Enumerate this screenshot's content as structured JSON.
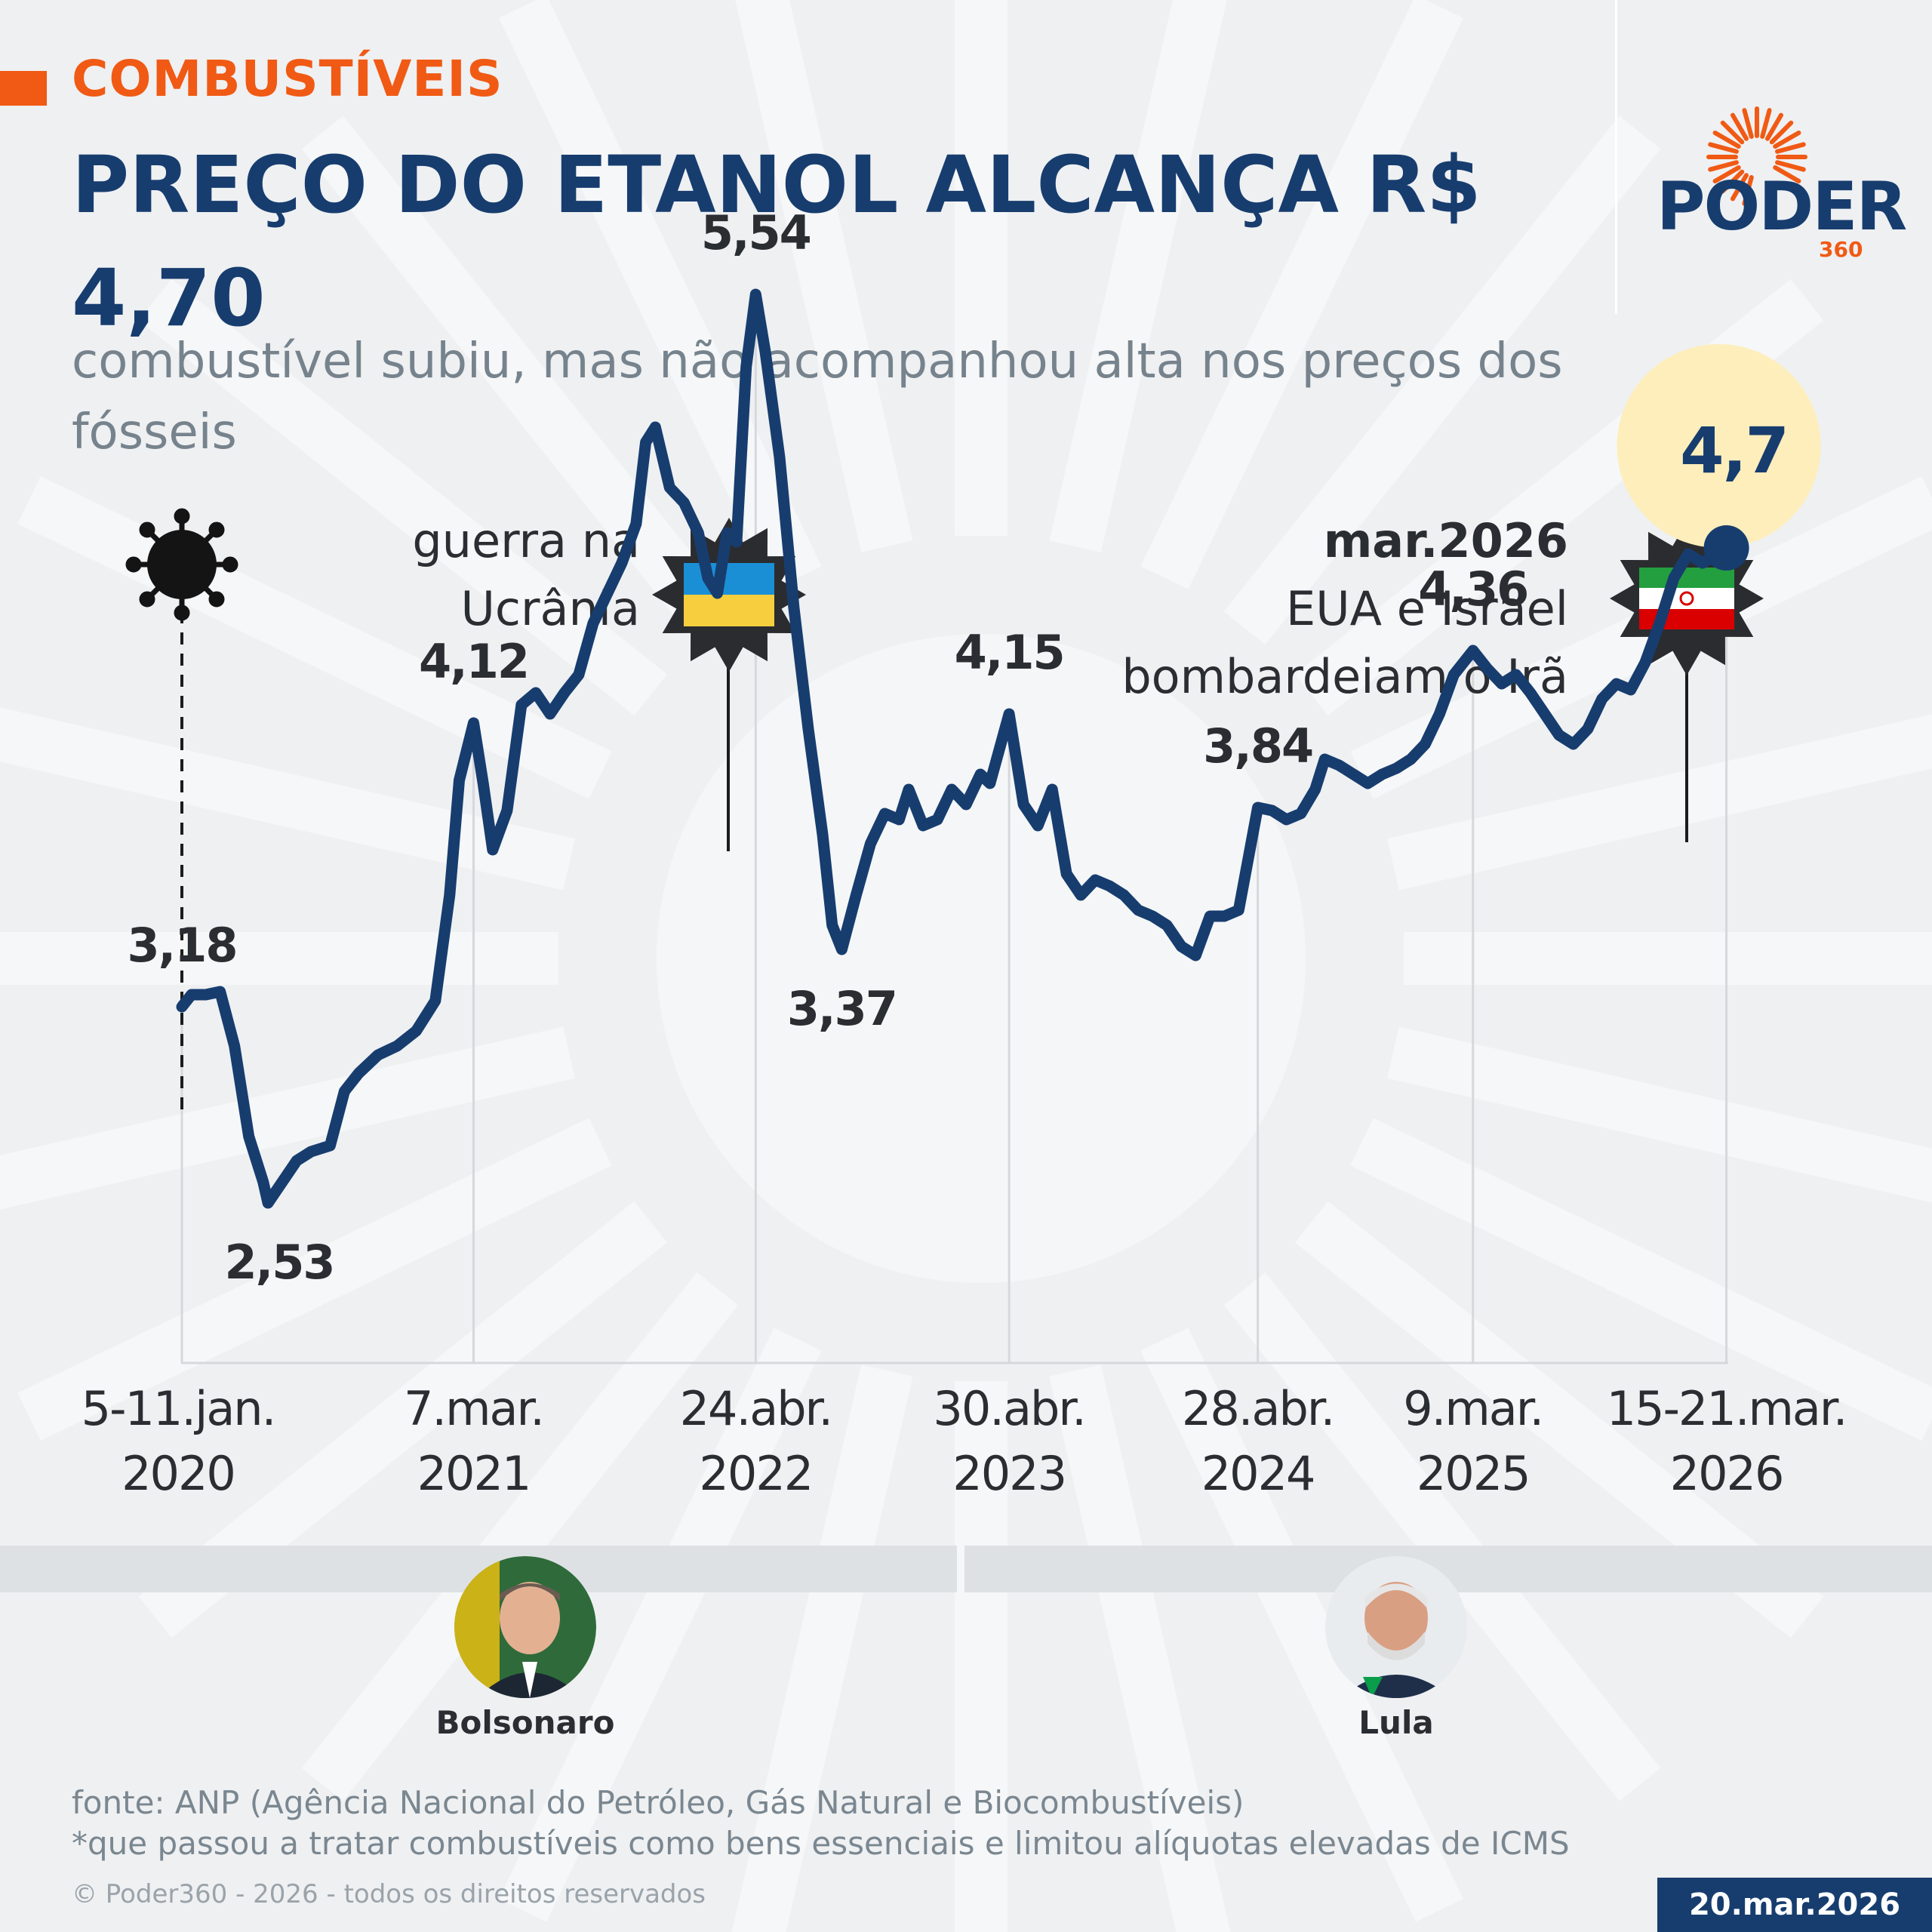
{
  "header": {
    "kicker": "COMBUSTÍVEIS",
    "title": "PREÇO DO ETANOL ALCANÇA R$ 4,70",
    "subtitle": "combustível subiu, mas não acompanhou alta nos preços dos fósseis"
  },
  "logo": {
    "name": "PODER",
    "number": "360"
  },
  "events": {
    "covid_icon": "virus-icon",
    "ukraine_label_1": "guerra na",
    "ukraine_label_2": "Ucrânia",
    "iran_date": "mar.2026",
    "iran_label_1": "EUA e Israel",
    "iran_label_2": "bombardeiam o Irã"
  },
  "presidents": {
    "left": "Bolsonaro",
    "right": "Lula"
  },
  "footer": {
    "source": "fonte: ANP (Agência Nacional do Petróleo, Gás Natural e Biocombustíveis)",
    "note": "*que passou a tratar combustíveis como bens essenciais e limitou alíquotas elevadas de ICMS",
    "copyright": "© Poder360 - 2026 - todos os direitos reservados",
    "date": "20.mar.2026"
  },
  "colors": {
    "line": "#173d6f",
    "accent": "#f05a14",
    "highlight": "#fdeebb",
    "background": "#eff0f2"
  },
  "chart_data": {
    "type": "line",
    "title": "PREÇO DO ETANOL ALCANÇA R$ 4,70",
    "xlabel": "",
    "ylabel": "",
    "ylim": [
      2.0,
      6.0
    ],
    "x_start": "2020-01-05",
    "x_end": "2026-03-21",
    "tick_labels": [
      {
        "date": "2020-01-05",
        "line1": "5-11.jan.",
        "line2": "2020"
      },
      {
        "date": "2021-03-07",
        "line1": "7.mar.",
        "line2": "2021"
      },
      {
        "date": "2022-04-24",
        "line1": "24.abr.",
        "line2": "2022"
      },
      {
        "date": "2023-04-30",
        "line1": "30.abr.",
        "line2": "2023"
      },
      {
        "date": "2024-04-28",
        "line1": "28.abr.",
        "line2": "2024"
      },
      {
        "date": "2025-03-09",
        "line1": "9.mar.",
        "line2": "2025"
      },
      {
        "date": "2026-03-15",
        "line1": "15-21.mar.",
        "line2": "2026"
      }
    ],
    "data_labels": [
      {
        "date": "2020-01-05",
        "value": 3.18,
        "text": "3,18",
        "position": "above"
      },
      {
        "date": "2020-05-10",
        "value": 2.53,
        "text": "2,53",
        "position": "below"
      },
      {
        "date": "2021-03-07",
        "value": 4.12,
        "text": "4,12",
        "position": "above"
      },
      {
        "date": "2022-04-24",
        "value": 5.54,
        "text": "5,54",
        "position": "above"
      },
      {
        "date": "2022-08-28",
        "value": 3.37,
        "text": "3,37",
        "position": "below"
      },
      {
        "date": "2023-04-30",
        "value": 4.15,
        "text": "4,15",
        "position": "above"
      },
      {
        "date": "2024-04-28",
        "value": 3.84,
        "text": "3,84",
        "position": "above"
      },
      {
        "date": "2025-03-09",
        "value": 4.36,
        "text": "4,36",
        "position": "above"
      },
      {
        "date": "2026-03-15",
        "value": 4.7,
        "text": "4,7",
        "position": "highlight"
      }
    ],
    "series": [
      {
        "values": [
          [
            "2020-01-05",
            3.18
          ],
          [
            "2020-01-19",
            3.22
          ],
          [
            "2020-02-09",
            3.22
          ],
          [
            "2020-03-01",
            3.23
          ],
          [
            "2020-03-22",
            3.05
          ],
          [
            "2020-04-12",
            2.75
          ],
          [
            "2020-05-03",
            2.6
          ],
          [
            "2020-05-10",
            2.53
          ],
          [
            "2020-05-31",
            2.6
          ],
          [
            "2020-06-21",
            2.67
          ],
          [
            "2020-07-12",
            2.7
          ],
          [
            "2020-08-09",
            2.72
          ],
          [
            "2020-08-30",
            2.9
          ],
          [
            "2020-09-20",
            2.96
          ],
          [
            "2020-10-18",
            3.02
          ],
          [
            "2020-11-15",
            3.05
          ],
          [
            "2020-12-13",
            3.1
          ],
          [
            "2021-01-10",
            3.2
          ],
          [
            "2021-01-31",
            3.55
          ],
          [
            "2021-02-14",
            3.93
          ],
          [
            "2021-03-07",
            4.12
          ],
          [
            "2021-03-21",
            3.92
          ],
          [
            "2021-04-04",
            3.7
          ],
          [
            "2021-04-25",
            3.83
          ],
          [
            "2021-05-16",
            4.18
          ],
          [
            "2021-06-06",
            4.22
          ],
          [
            "2021-06-27",
            4.15
          ],
          [
            "2021-07-18",
            4.22
          ],
          [
            "2021-08-08",
            4.28
          ],
          [
            "2021-08-29",
            4.45
          ],
          [
            "2021-09-19",
            4.55
          ],
          [
            "2021-10-10",
            4.65
          ],
          [
            "2021-10-31",
            4.78
          ],
          [
            "2021-11-14",
            5.05
          ],
          [
            "2021-11-28",
            5.1
          ],
          [
            "2021-12-19",
            4.9
          ],
          [
            "2022-01-09",
            4.85
          ],
          [
            "2022-01-30",
            4.75
          ],
          [
            "2022-02-13",
            4.6
          ],
          [
            "2022-02-27",
            4.55
          ],
          [
            "2022-03-13",
            4.75
          ],
          [
            "2022-03-27",
            4.72
          ],
          [
            "2022-04-10",
            5.3
          ],
          [
            "2022-04-24",
            5.54
          ],
          [
            "2022-05-08",
            5.35
          ],
          [
            "2022-05-29",
            5.0
          ],
          [
            "2022-06-19",
            4.5
          ],
          [
            "2022-07-10",
            4.1
          ],
          [
            "2022-07-31",
            3.75
          ],
          [
            "2022-08-14",
            3.45
          ],
          [
            "2022-08-28",
            3.37
          ],
          [
            "2022-09-18",
            3.55
          ],
          [
            "2022-10-09",
            3.72
          ],
          [
            "2022-10-30",
            3.82
          ],
          [
            "2022-11-20",
            3.8
          ],
          [
            "2022-12-04",
            3.9
          ],
          [
            "2022-12-25",
            3.78
          ],
          [
            "2023-01-15",
            3.8
          ],
          [
            "2023-02-05",
            3.9
          ],
          [
            "2023-02-26",
            3.85
          ],
          [
            "2023-03-19",
            3.95
          ],
          [
            "2023-04-02",
            3.92
          ],
          [
            "2023-04-30",
            4.15
          ],
          [
            "2023-05-21",
            3.85
          ],
          [
            "2023-06-11",
            3.78
          ],
          [
            "2023-07-02",
            3.9
          ],
          [
            "2023-07-23",
            3.62
          ],
          [
            "2023-08-13",
            3.55
          ],
          [
            "2023-09-03",
            3.6
          ],
          [
            "2023-09-24",
            3.58
          ],
          [
            "2023-10-15",
            3.55
          ],
          [
            "2023-11-05",
            3.5
          ],
          [
            "2023-11-26",
            3.48
          ],
          [
            "2023-12-17",
            3.45
          ],
          [
            "2024-01-07",
            3.38
          ],
          [
            "2024-01-28",
            3.35
          ],
          [
            "2024-02-18",
            3.48
          ],
          [
            "2024-03-10",
            3.48
          ],
          [
            "2024-03-31",
            3.5
          ],
          [
            "2024-04-28",
            3.84
          ],
          [
            "2024-05-19",
            3.83
          ],
          [
            "2024-06-09",
            3.8
          ],
          [
            "2024-06-30",
            3.82
          ],
          [
            "2024-07-21",
            3.9
          ],
          [
            "2024-08-04",
            4.0
          ],
          [
            "2024-08-25",
            3.98
          ],
          [
            "2024-09-15",
            3.95
          ],
          [
            "2024-10-06",
            3.92
          ],
          [
            "2024-10-27",
            3.95
          ],
          [
            "2024-11-17",
            3.97
          ],
          [
            "2024-12-08",
            4.0
          ],
          [
            "2024-12-29",
            4.05
          ],
          [
            "2025-01-19",
            4.15
          ],
          [
            "2025-02-09",
            4.28
          ],
          [
            "2025-03-09",
            4.36
          ],
          [
            "2025-03-30",
            4.3
          ],
          [
            "2025-04-20",
            4.25
          ],
          [
            "2025-05-11",
            4.28
          ],
          [
            "2025-06-01",
            4.22
          ],
          [
            "2025-06-22",
            4.15
          ],
          [
            "2025-07-13",
            4.08
          ],
          [
            "2025-08-03",
            4.05
          ],
          [
            "2025-08-24",
            4.1
          ],
          [
            "2025-09-14",
            4.2
          ],
          [
            "2025-10-05",
            4.25
          ],
          [
            "2025-10-26",
            4.23
          ],
          [
            "2025-11-16",
            4.32
          ],
          [
            "2025-12-07",
            4.45
          ],
          [
            "2025-12-28",
            4.6
          ],
          [
            "2026-01-18",
            4.68
          ],
          [
            "2026-02-08",
            4.65
          ],
          [
            "2026-03-15",
            4.7
          ]
        ]
      }
    ]
  }
}
